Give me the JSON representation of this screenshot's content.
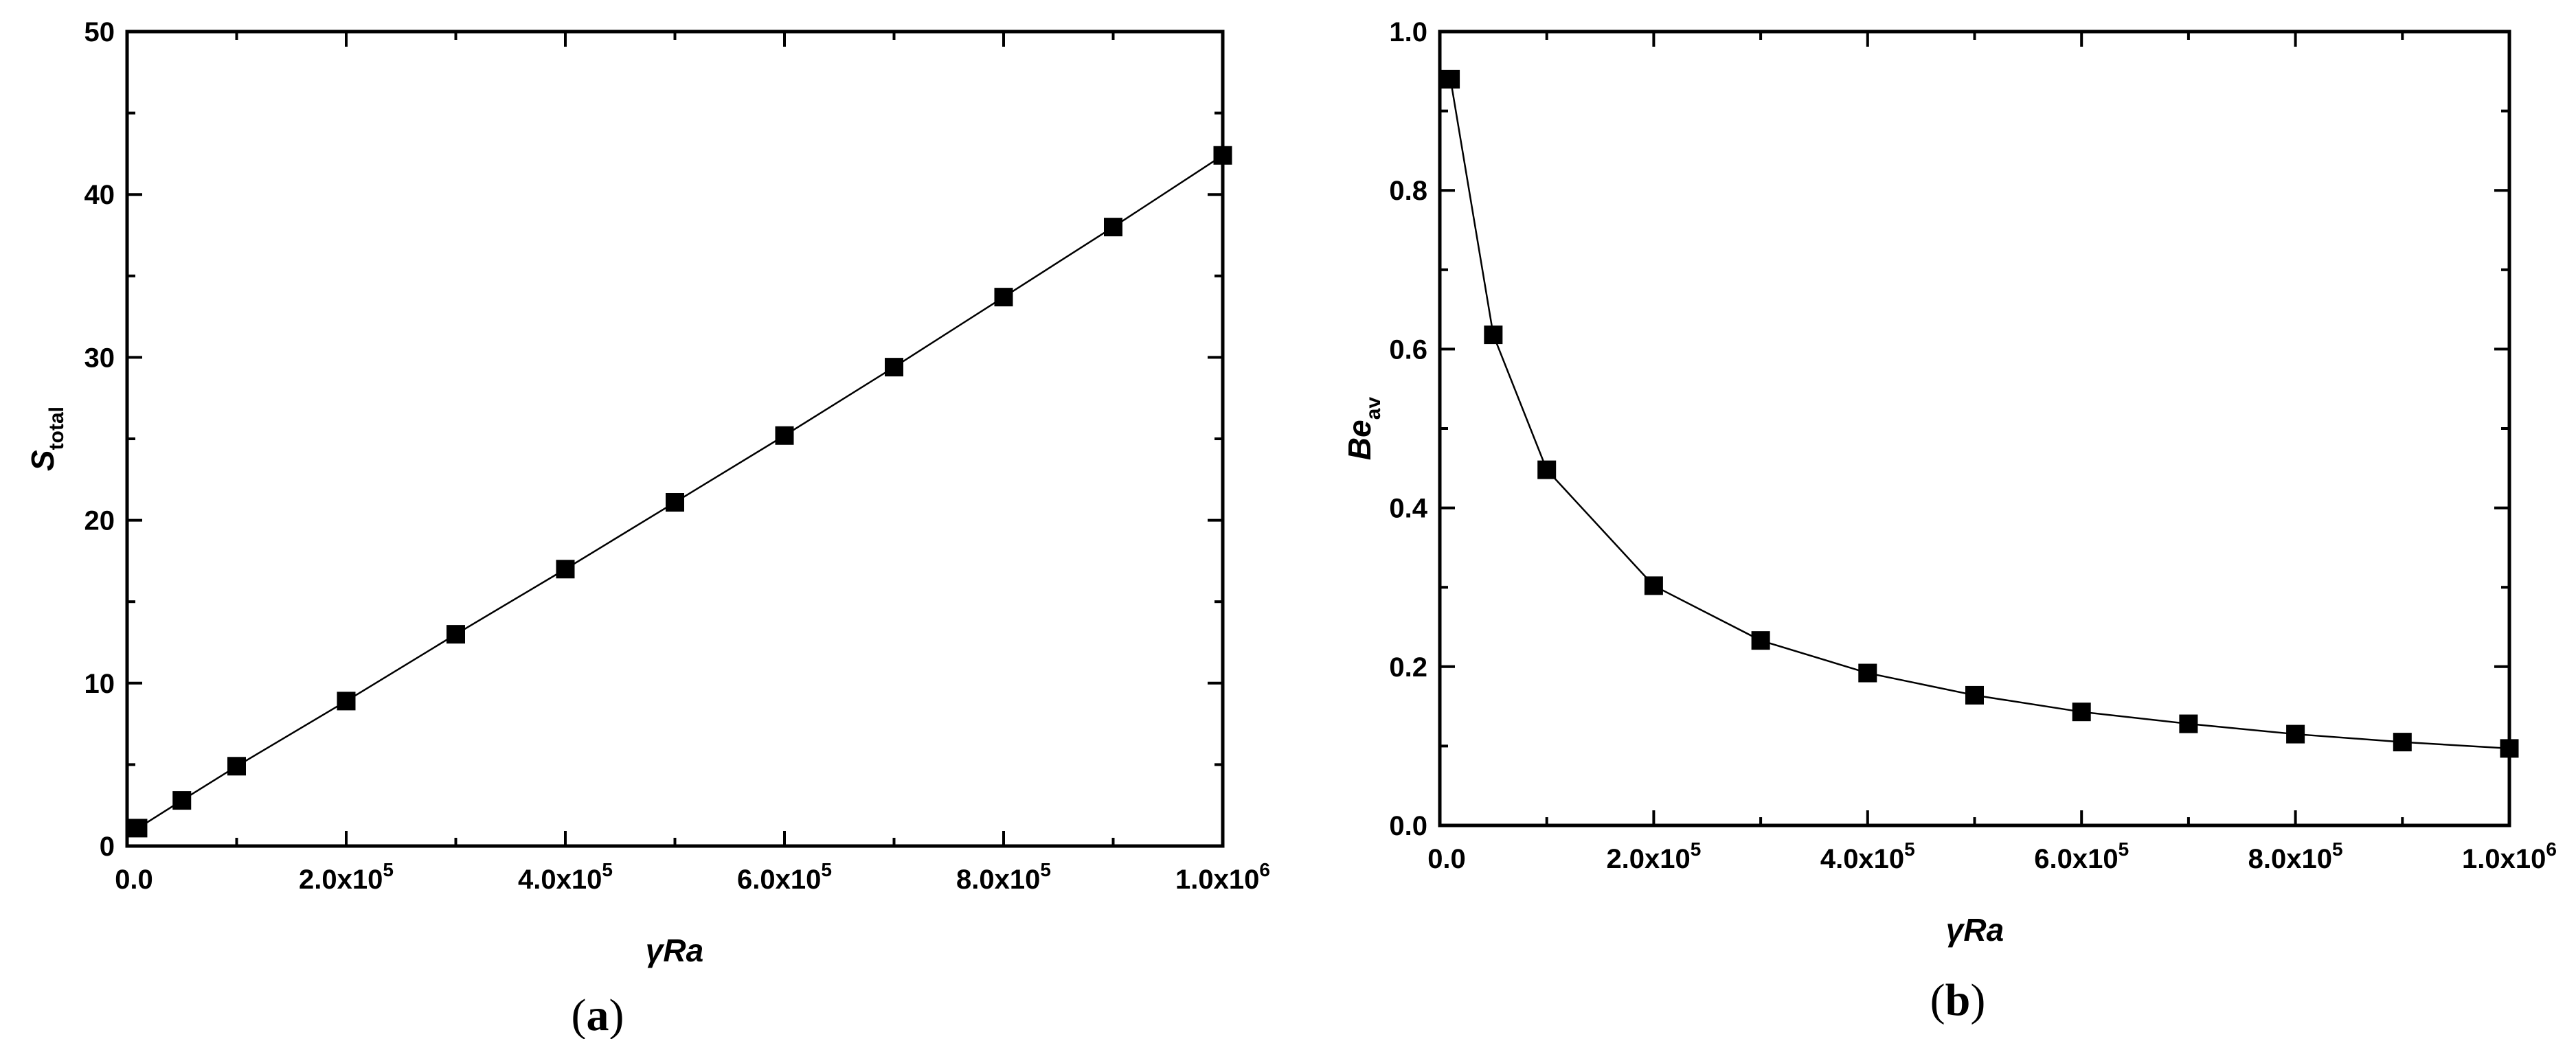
{
  "chart_data": [
    {
      "type": "line",
      "panel_label": "a",
      "ylabel_main": "S",
      "ylabel_sub": "total",
      "xlabel": "γRa",
      "xlim": [
        0,
        1000000
      ],
      "ylim": [
        0,
        50
      ],
      "y_ticks": [
        "0",
        "10",
        "20",
        "30",
        "40",
        "50"
      ],
      "x_ticks": [
        "0.0",
        "2.0x10",
        "4.0x10",
        "6.0x10",
        "8.0x10",
        "1.0x10"
      ],
      "x_tick_exponents": [
        "",
        "5",
        "5",
        "5",
        "5",
        "6"
      ],
      "x_tick_values": [
        0,
        200000,
        400000,
        600000,
        800000,
        1000000
      ],
      "y_tick_values": [
        0,
        10,
        20,
        30,
        40,
        50
      ],
      "x": [
        10000,
        50000,
        100000,
        200000,
        300000,
        400000,
        500000,
        600000,
        700000,
        800000,
        900000,
        1000000
      ],
      "y": [
        1.1,
        2.8,
        4.9,
        8.9,
        13.0,
        17.0,
        21.1,
        25.2,
        29.4,
        33.7,
        38.0,
        42.4
      ],
      "grid": false,
      "marker": "square"
    },
    {
      "type": "line",
      "panel_label": "b",
      "ylabel_main": "Be",
      "ylabel_sub": "av",
      "xlabel": "γRa",
      "xlim": [
        0,
        1000000
      ],
      "ylim": [
        0,
        1.0
      ],
      "y_ticks": [
        "0.0",
        "0.2",
        "0.4",
        "0.6",
        "0.8",
        "1.0"
      ],
      "x_ticks": [
        "0.0",
        "2.0x10",
        "4.0x10",
        "6.0x10",
        "8.0x10",
        "1.0x10"
      ],
      "x_tick_exponents": [
        "",
        "5",
        "5",
        "5",
        "5",
        "6"
      ],
      "x_tick_values": [
        0,
        200000,
        400000,
        600000,
        800000,
        1000000
      ],
      "y_tick_values": [
        0,
        0.2,
        0.4,
        0.6,
        0.8,
        1.0
      ],
      "x": [
        10000,
        50000,
        100000,
        200000,
        300000,
        400000,
        500000,
        600000,
        700000,
        800000,
        900000,
        1000000
      ],
      "y": [
        0.94,
        0.618,
        0.448,
        0.302,
        0.233,
        0.192,
        0.164,
        0.143,
        0.128,
        0.115,
        0.105,
        0.097
      ],
      "grid": false,
      "marker": "square"
    }
  ]
}
